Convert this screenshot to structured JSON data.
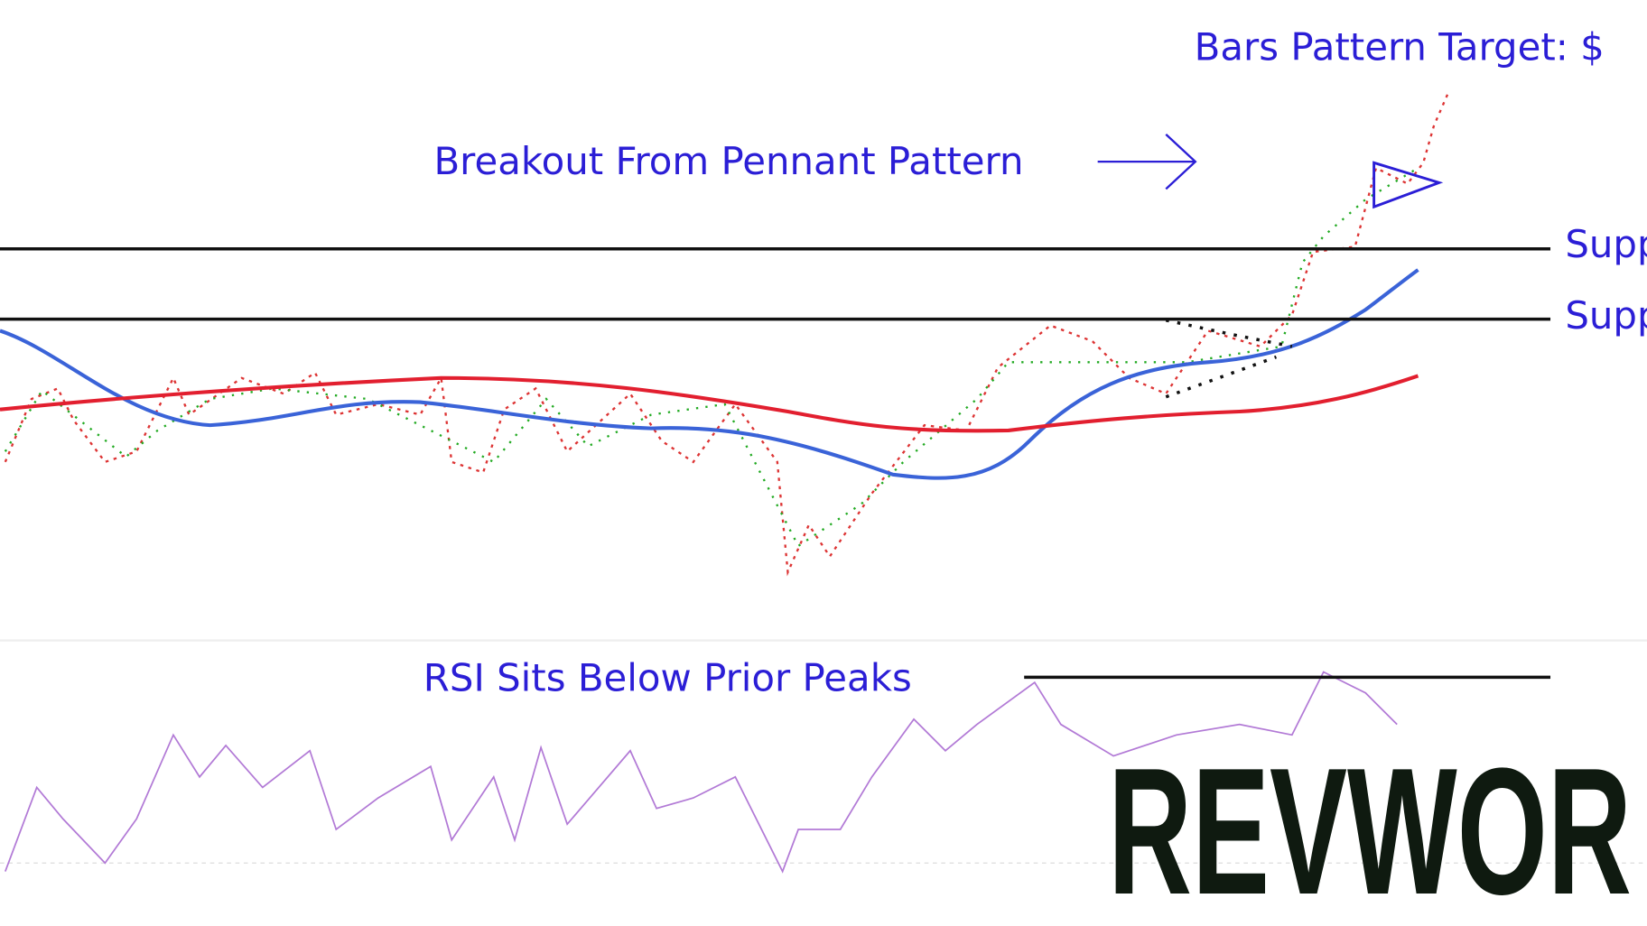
{
  "chart_data": {
    "type": "annotated-stock-chart",
    "annotations": {
      "target": "Bars Pattern Target: $",
      "breakout": "Breakout From Pennant Pattern",
      "support_upper": "Supp",
      "support_lower": "Supp",
      "rsi": "RSI Sits Below Prior Peaks"
    },
    "watermark": "REVWOR"
  }
}
